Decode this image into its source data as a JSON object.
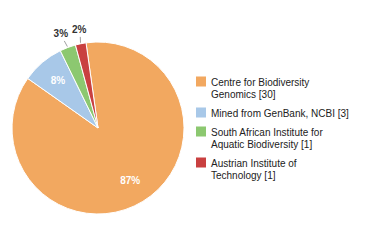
{
  "chart_data": {
    "type": "pie",
    "categories": [
      "Centre for Biodiversity\nGenomics [30]",
      "Mined from GenBank, NCBI [3]",
      "South African Institute for\nAquatic Biodiversity [1]",
      "Austrian Institute of\nTechnology [1]"
    ],
    "values": [
      87,
      8,
      3,
      2
    ],
    "value_labels": [
      "87%",
      "8%",
      "3%",
      "2%"
    ],
    "colors": [
      "#F2A860",
      "#A8C8E8",
      "#8CC870",
      "#C94040"
    ],
    "data_labels": true,
    "legend": "right"
  }
}
